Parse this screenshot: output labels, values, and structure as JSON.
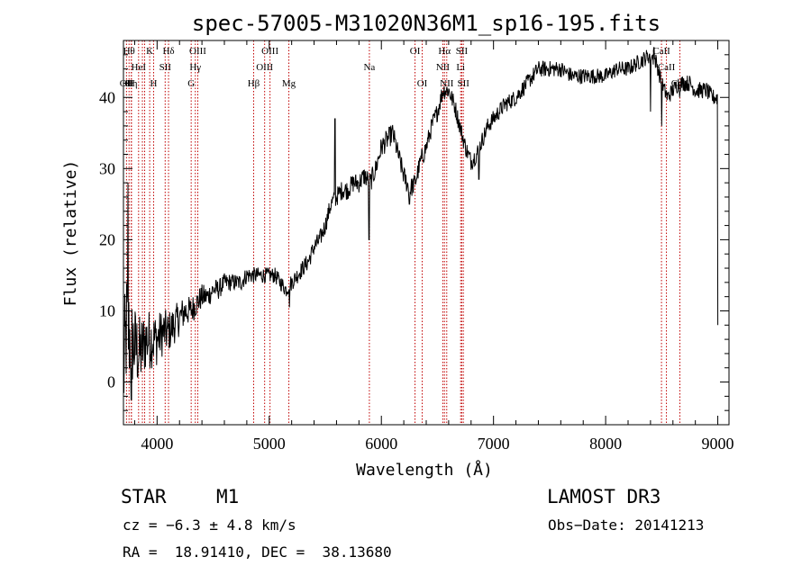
{
  "chart_data": {
    "type": "line",
    "title": "spec-57005-M31020N36M1_sp16-195.fits",
    "xlabel": "Wavelength (Å)",
    "ylabel": "Flux (relative)",
    "xlim": [
      3700,
      9100
    ],
    "ylim": [
      -6,
      48
    ],
    "xticks": [
      4000,
      5000,
      6000,
      7000,
      8000,
      9000
    ],
    "yticks": [
      0,
      10,
      20,
      30,
      40
    ],
    "grid": false,
    "series": [
      {
        "name": "spectrum",
        "anchors": [
          [
            3700,
            1
          ],
          [
            3730,
            8
          ],
          [
            3760,
            6
          ],
          [
            3800,
            5
          ],
          [
            3850,
            4
          ],
          [
            3900,
            6
          ],
          [
            3950,
            6
          ],
          [
            4000,
            6
          ],
          [
            4050,
            7
          ],
          [
            4100,
            7
          ],
          [
            4150,
            8
          ],
          [
            4200,
            9
          ],
          [
            4250,
            10
          ],
          [
            4300,
            10
          ],
          [
            4350,
            11
          ],
          [
            4400,
            12
          ],
          [
            4450,
            12
          ],
          [
            4500,
            13
          ],
          [
            4550,
            13
          ],
          [
            4600,
            14
          ],
          [
            4650,
            14
          ],
          [
            4700,
            14
          ],
          [
            4750,
            14
          ],
          [
            4800,
            15
          ],
          [
            4850,
            15
          ],
          [
            4900,
            15
          ],
          [
            4950,
            15
          ],
          [
            5000,
            15
          ],
          [
            5050,
            15
          ],
          [
            5100,
            14
          ],
          [
            5150,
            13
          ],
          [
            5200,
            14
          ],
          [
            5250,
            15
          ],
          [
            5300,
            16
          ],
          [
            5350,
            17
          ],
          [
            5400,
            19
          ],
          [
            5450,
            20
          ],
          [
            5500,
            22
          ],
          [
            5550,
            25
          ],
          [
            5600,
            26
          ],
          [
            5650,
            27
          ],
          [
            5700,
            27
          ],
          [
            5750,
            28
          ],
          [
            5800,
            28
          ],
          [
            5850,
            29
          ],
          [
            5900,
            28
          ],
          [
            5950,
            30
          ],
          [
            6000,
            33
          ],
          [
            6050,
            34
          ],
          [
            6100,
            35
          ],
          [
            6150,
            32
          ],
          [
            6200,
            29
          ],
          [
            6250,
            27
          ],
          [
            6300,
            28
          ],
          [
            6350,
            31
          ],
          [
            6400,
            33
          ],
          [
            6450,
            36
          ],
          [
            6500,
            38
          ],
          [
            6550,
            41
          ],
          [
            6600,
            41
          ],
          [
            6650,
            39
          ],
          [
            6700,
            36
          ],
          [
            6750,
            33
          ],
          [
            6800,
            31
          ],
          [
            6850,
            32
          ],
          [
            6900,
            34
          ],
          [
            6950,
            36
          ],
          [
            7000,
            37
          ],
          [
            7050,
            38
          ],
          [
            7100,
            39
          ],
          [
            7200,
            40
          ],
          [
            7300,
            42
          ],
          [
            7400,
            44
          ],
          [
            7500,
            44
          ],
          [
            7600,
            44
          ],
          [
            7700,
            43
          ],
          [
            7800,
            43
          ],
          [
            7900,
            43
          ],
          [
            8000,
            43
          ],
          [
            8100,
            44
          ],
          [
            8200,
            44
          ],
          [
            8300,
            45
          ],
          [
            8400,
            46
          ],
          [
            8450,
            45
          ],
          [
            8500,
            42
          ],
          [
            8550,
            40
          ],
          [
            8600,
            41
          ],
          [
            8650,
            42
          ],
          [
            8700,
            42
          ],
          [
            8750,
            42
          ],
          [
            8800,
            41
          ],
          [
            8850,
            41
          ],
          [
            8900,
            41
          ],
          [
            8950,
            40
          ],
          [
            9000,
            40
          ]
        ],
        "noise_scale": [
          [
            3700,
            9
          ],
          [
            3800,
            6
          ],
          [
            3900,
            4.5
          ],
          [
            4100,
            3
          ],
          [
            4300,
            2
          ],
          [
            4600,
            1.3
          ],
          [
            5000,
            1.1
          ],
          [
            5500,
            1.3
          ],
          [
            6000,
            1.5
          ],
          [
            7000,
            1.2
          ],
          [
            8000,
            1.1
          ],
          [
            9000,
            1.2
          ]
        ],
        "features": [
          {
            "at": 5890,
            "value": 20
          },
          {
            "at": 6250,
            "value": 25
          },
          {
            "at": 6870,
            "value": 28.5
          },
          {
            "at": 8400,
            "value": 38
          },
          {
            "at": 8430,
            "value": 47
          },
          {
            "at": 8500,
            "value": 36
          },
          {
            "at": 8540,
            "value": 41
          },
          {
            "at": 8660,
            "value": 40
          },
          {
            "at": 3770,
            "value": -2.5
          },
          {
            "at": 3740,
            "value": 28
          },
          {
            "at": 5180,
            "value": 10.5
          },
          {
            "at": 5585,
            "value": 37
          },
          {
            "at": 9000,
            "value": 8
          },
          {
            "at": 9005,
            "value": 0
          }
        ]
      }
    ],
    "lines": [
      {
        "wavelength": 3727,
        "row": 2,
        "label": "OII"
      },
      {
        "wavelength": 3750,
        "row": 0,
        "label": "Hθ"
      },
      {
        "wavelength": 3770,
        "row": 2,
        "label": "Hη"
      },
      {
        "wavelength": 3771,
        "row": 2,
        "label": "H"
      },
      {
        "wavelength": 3835,
        "row": 1,
        "label": "HeI"
      },
      {
        "wavelength": 3869,
        "row": 1,
        "label": ""
      },
      {
        "wavelength": 3889,
        "row": 1,
        "label": ""
      },
      {
        "wavelength": 3934,
        "row": 0,
        "label": "K"
      },
      {
        "wavelength": 3969,
        "row": 2,
        "label": "H"
      },
      {
        "wavelength": 4072,
        "row": 1,
        "label": "SII"
      },
      {
        "wavelength": 4102,
        "row": 0,
        "label": "Hδ"
      },
      {
        "wavelength": 4304,
        "row": 2,
        "label": "G"
      },
      {
        "wavelength": 4341,
        "row": 1,
        "label": "Hγ"
      },
      {
        "wavelength": 4363,
        "row": 0,
        "label": "OIII"
      },
      {
        "wavelength": 4861,
        "row": 2,
        "label": "Hβ"
      },
      {
        "wavelength": 4959,
        "row": 1,
        "label": "OIII"
      },
      {
        "wavelength": 5007,
        "row": 0,
        "label": "OIII"
      },
      {
        "wavelength": 5175,
        "row": 2,
        "label": "Mg"
      },
      {
        "wavelength": 5893,
        "row": 1,
        "label": "Na"
      },
      {
        "wavelength": 6300,
        "row": 0,
        "label": "OI"
      },
      {
        "wavelength": 6364,
        "row": 2,
        "label": "OI"
      },
      {
        "wavelength": 6548,
        "row": 1,
        "label": "NII"
      },
      {
        "wavelength": 6563,
        "row": 0,
        "label": "Hα"
      },
      {
        "wavelength": 6583,
        "row": 2,
        "label": "NII"
      },
      {
        "wavelength": 6707,
        "row": 1,
        "label": "Li"
      },
      {
        "wavelength": 6717,
        "row": 0,
        "label": "SII"
      },
      {
        "wavelength": 6731,
        "row": 2,
        "label": "SII"
      },
      {
        "wavelength": 8498,
        "row": 0,
        "label": "CaII"
      },
      {
        "wavelength": 8542,
        "row": 1,
        "label": "CaII"
      },
      {
        "wavelength": 8662,
        "row": 2,
        "label": "CaII"
      }
    ],
    "colors": {
      "line": "#000000",
      "marker": "#c00000",
      "text": "#000000"
    }
  },
  "info": {
    "object_class": "STAR",
    "subclass": "M1",
    "survey": "LAMOST DR3",
    "velocity": "cz = −6.3 ± 4.8 km/s",
    "obs_date": "Obs−Date: 20141213",
    "coords": "RA =  18.91410, DEC =  38.13680"
  }
}
